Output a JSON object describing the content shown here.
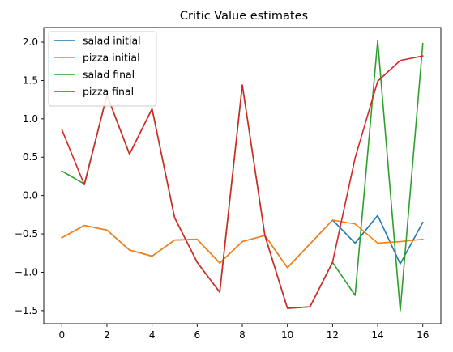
{
  "chart_data": {
    "type": "line",
    "title": "Critic Value estimates",
    "xlabel": "",
    "ylabel": "",
    "x": [
      0,
      1,
      2,
      3,
      4,
      5,
      6,
      7,
      8,
      9,
      10,
      11,
      12,
      13,
      14,
      15,
      16
    ],
    "xlim": [
      -0.8,
      16.8
    ],
    "ylim": [
      -1.67,
      2.19
    ],
    "xticks": [
      0,
      2,
      4,
      6,
      8,
      10,
      12,
      14,
      16
    ],
    "yticks": [
      -1.5,
      -1.0,
      -0.5,
      0.0,
      0.5,
      1.0,
      1.5,
      2.0
    ],
    "ytick_labels": [
      "−1.5",
      "−1.0",
      "−0.5",
      "0.0",
      "0.5",
      "1.0",
      "1.5",
      "2.0"
    ],
    "grid": false,
    "legend_position": "upper-left",
    "series": [
      {
        "name": "salad initial",
        "color": "#1f77b4",
        "values": [
          -0.55,
          -0.39,
          -0.45,
          -0.71,
          -0.79,
          -0.58,
          -0.57,
          -0.88,
          -0.6,
          -0.52,
          -0.94,
          -0.63,
          -0.32,
          -0.62,
          -0.26,
          -0.89,
          -0.35
        ]
      },
      {
        "name": "pizza initial",
        "color": "#ff7f0e",
        "values": [
          -0.55,
          -0.39,
          -0.45,
          -0.71,
          -0.79,
          -0.58,
          -0.57,
          -0.88,
          -0.6,
          -0.52,
          -0.94,
          -0.63,
          -0.32,
          -0.37,
          -0.62,
          -0.6,
          -0.57
        ]
      },
      {
        "name": "salad final",
        "color": "#2ca02c",
        "values": [
          0.32,
          0.15,
          1.31,
          0.54,
          1.13,
          -0.29,
          -0.87,
          -1.26,
          1.44,
          -0.52,
          -1.47,
          -1.45,
          -0.87,
          -1.3,
          2.02,
          -1.5,
          1.98
        ]
      },
      {
        "name": "pizza final",
        "color": "#d62728",
        "values": [
          0.86,
          0.14,
          1.31,
          0.54,
          1.13,
          -0.29,
          -0.87,
          -1.26,
          1.44,
          -0.52,
          -1.47,
          -1.45,
          -0.87,
          0.49,
          1.49,
          1.76,
          1.82
        ]
      }
    ]
  }
}
